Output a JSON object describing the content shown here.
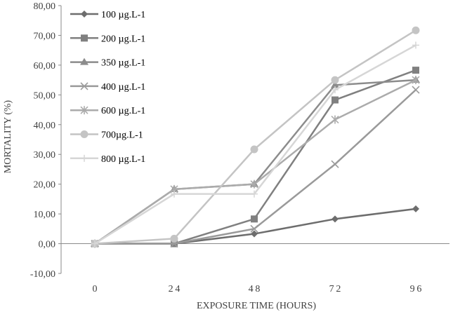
{
  "chart_data": {
    "type": "line",
    "xlabel": "EXPOSURE TIME (HOURS)",
    "ylabel": "MORTALITY  (%)",
    "categories": [
      "0",
      "24",
      "48",
      "72",
      "96"
    ],
    "y_ticks": [
      "-10,00",
      "0,00",
      "10,00",
      "20,00",
      "30,00",
      "40,00",
      "50,00",
      "60,00",
      "70,00",
      "80,00"
    ],
    "ylim": [
      -10,
      80
    ],
    "grid": false,
    "legend_position": "top-left",
    "series": [
      {
        "name": "100 µg.L-1",
        "marker": "diamond",
        "color": "#6d6d6d",
        "values": [
          0,
          0,
          3.3,
          8.3,
          11.7
        ]
      },
      {
        "name": "200 µg.L-1",
        "marker": "square",
        "color": "#808080",
        "values": [
          0,
          0,
          8.3,
          48.3,
          58.3
        ]
      },
      {
        "name": "350 µg.L-1",
        "marker": "triangle",
        "color": "#8c8c8c",
        "values": [
          0,
          18.3,
          20.0,
          53.3,
          55.0
        ]
      },
      {
        "name": "400 µg.L-1",
        "marker": "x",
        "color": "#9a9a9a",
        "values": [
          0,
          0,
          5.0,
          26.7,
          51.7
        ]
      },
      {
        "name": "600 µg.L-1",
        "marker": "asterisk",
        "color": "#ababab",
        "values": [
          0,
          18.3,
          20.0,
          41.7,
          55.0
        ]
      },
      {
        "name": "700µg.L-1",
        "marker": "circle",
        "color": "#c4c4c4",
        "values": [
          0,
          1.7,
          31.7,
          55.0,
          71.7
        ]
      },
      {
        "name": "800 µg.L-1",
        "marker": "plus",
        "color": "#d6d6d6",
        "values": [
          0,
          16.7,
          16.7,
          51.7,
          66.7
        ]
      }
    ]
  }
}
